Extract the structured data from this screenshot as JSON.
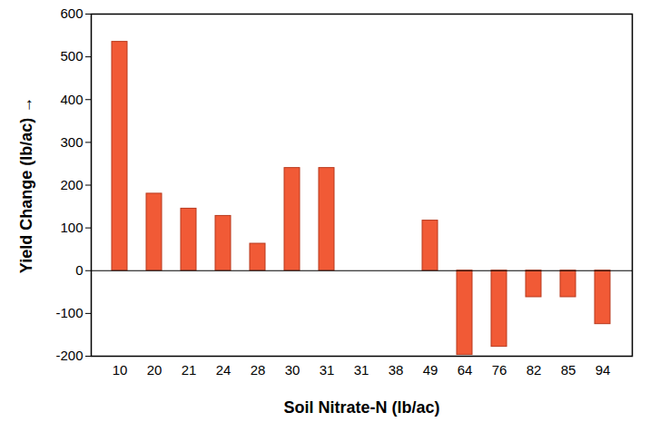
{
  "chart_data": {
    "type": "bar",
    "x_label": "Soil Nitrate-N (lb/ac)",
    "y_label": "Yield Change (lb/ac)",
    "categories": [
      "10",
      "20",
      "21",
      "24",
      "28",
      "30",
      "31",
      "31",
      "38",
      "49",
      "64",
      "76",
      "82",
      "85",
      "94"
    ],
    "values": [
      535,
      180,
      145,
      128,
      63,
      240,
      240,
      0,
      0,
      117,
      -197,
      -178,
      -62,
      -62,
      -125
    ],
    "color": "#f15a36",
    "ylim": [
      -200,
      600
    ],
    "yticks": [
      -200,
      -100,
      0,
      100,
      200,
      300,
      400,
      500,
      600
    ],
    "grid": false
  }
}
